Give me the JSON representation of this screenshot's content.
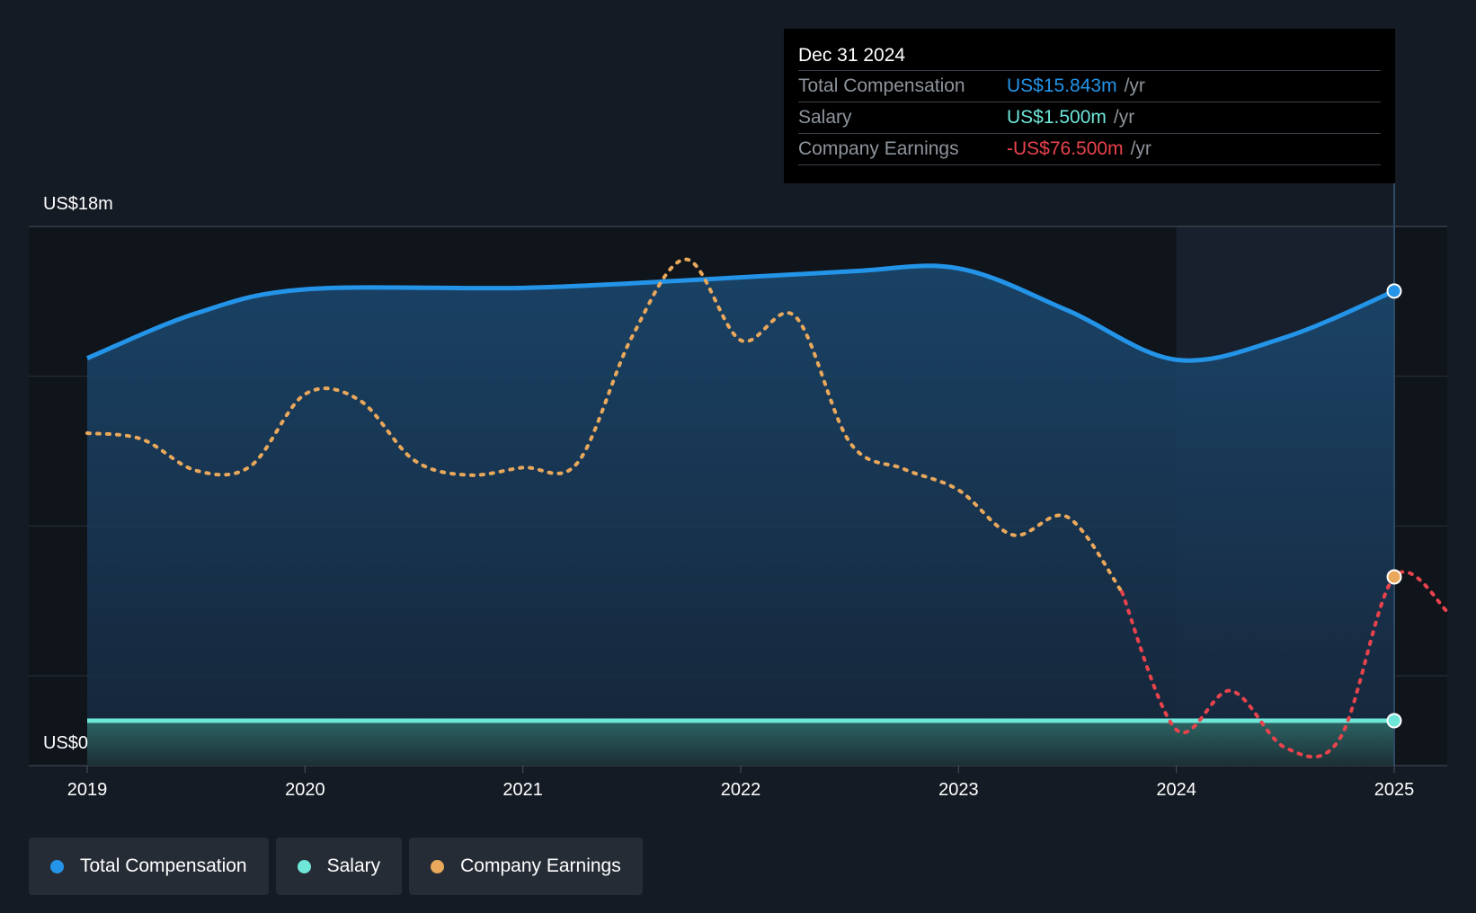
{
  "tooltip": {
    "date": "Dec 31 2024",
    "rows": [
      {
        "label": "Total Compensation",
        "value": "US$15.843m",
        "unit": "/yr",
        "color": "#2394e8"
      },
      {
        "label": "Salary",
        "value": "US$1.500m",
        "unit": "/yr",
        "color": "#6ee6d8"
      },
      {
        "label": "Company Earnings",
        "value": "-US$76.500m",
        "unit": "/yr",
        "color": "#e8434c"
      }
    ]
  },
  "legend": [
    {
      "label": "Total Compensation",
      "color": "#2394e8"
    },
    {
      "label": "Salary",
      "color": "#6ee6d8"
    },
    {
      "label": "Company Earnings",
      "color": "#e9a85b"
    }
  ],
  "chart_data": {
    "type": "line",
    "y_labels": {
      "top": "US$18m",
      "bottom": "US$0"
    },
    "ylim": [
      0,
      18
    ],
    "xlim": [
      2019,
      2025.25
    ],
    "x_ticks": [
      "2019",
      "2020",
      "2021",
      "2022",
      "2023",
      "2024",
      "2025"
    ],
    "highlight_start": 2024.0,
    "series": [
      {
        "name": "Total Compensation",
        "color": "#2394e8",
        "points": [
          [
            2019.0,
            13.6
          ],
          [
            2019.5,
            15.1
          ],
          [
            2020.0,
            15.9
          ],
          [
            2021.0,
            15.95
          ],
          [
            2021.75,
            16.2
          ],
          [
            2022.5,
            16.5
          ],
          [
            2023.0,
            16.6
          ],
          [
            2023.5,
            15.2
          ],
          [
            2024.0,
            13.55
          ],
          [
            2024.5,
            14.3
          ],
          [
            2025.0,
            15.843
          ]
        ]
      },
      {
        "name": "Salary",
        "color": "#6ee6d8",
        "points": [
          [
            2019.0,
            1.5
          ],
          [
            2025.0,
            1.5
          ]
        ]
      },
      {
        "name": "Company Earnings",
        "color": "#e9a85b",
        "negative_color": "#e8434c",
        "display_scale": "not-to-axis",
        "points": [
          [
            2019.0,
            11.1
          ],
          [
            2019.25,
            10.9
          ],
          [
            2019.5,
            9.85
          ],
          [
            2019.75,
            10.0
          ],
          [
            2020.0,
            12.4
          ],
          [
            2020.25,
            12.2
          ],
          [
            2020.5,
            10.2
          ],
          [
            2020.75,
            9.7
          ],
          [
            2021.0,
            9.95
          ],
          [
            2021.25,
            10.1
          ],
          [
            2021.5,
            14.3
          ],
          [
            2021.75,
            16.9
          ],
          [
            2022.0,
            14.2
          ],
          [
            2022.25,
            15.0
          ],
          [
            2022.5,
            10.8
          ],
          [
            2022.75,
            9.9
          ],
          [
            2023.0,
            9.2
          ],
          [
            2023.25,
            7.7
          ],
          [
            2023.5,
            8.3
          ],
          [
            2023.75,
            5.8
          ],
          [
            2024.0,
            1.2
          ],
          [
            2024.25,
            2.5
          ],
          [
            2024.5,
            0.6
          ],
          [
            2024.75,
            0.9
          ],
          [
            2025.0,
            6.3
          ],
          [
            2025.25,
            5.1
          ]
        ],
        "negative_from": 2023.6
      }
    ]
  }
}
